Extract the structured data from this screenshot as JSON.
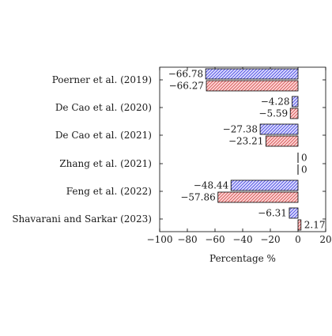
{
  "chart_data": {
    "type": "bar",
    "orientation": "horizontal",
    "categories": [
      "Poerner et al. (2019)",
      "De Cao et al. (2020)",
      "De Cao et al. (2021)",
      "Zhang et al. (2021)",
      "Feng et al. (2022)",
      "Shavarani and Sarkar (2023)"
    ],
    "series": [
      {
        "color": "#2b2bd6",
        "fill": "#d8d8ff",
        "pattern": "hatch",
        "values": [
          -66.78,
          -4.28,
          -27.38,
          0,
          -48.44,
          -6.31
        ],
        "labels": [
          "−66.78",
          "−4.28",
          "−27.38",
          "0",
          "−48.44",
          "−6.31"
        ]
      },
      {
        "color": "#c43a3a",
        "fill": "#ffd0d0",
        "pattern": "hatch",
        "values": [
          -66.27,
          -5.59,
          -23.21,
          0,
          -57.86,
          2.17
        ],
        "labels": [
          "−66.27",
          "−5.59",
          "−23.21",
          "0",
          "−57.86",
          "2.17"
        ]
      }
    ],
    "xlabel": "Percentage %",
    "ylabel": "",
    "title": "",
    "xlim": [
      -100,
      20
    ],
    "xticks": [
      -100,
      -80,
      -60,
      -40,
      -20,
      0,
      20
    ],
    "xtick_labels": [
      "−100",
      "−80",
      "−60",
      "−40",
      "−20",
      "0",
      "20"
    ],
    "grid": false,
    "legend": "none"
  }
}
